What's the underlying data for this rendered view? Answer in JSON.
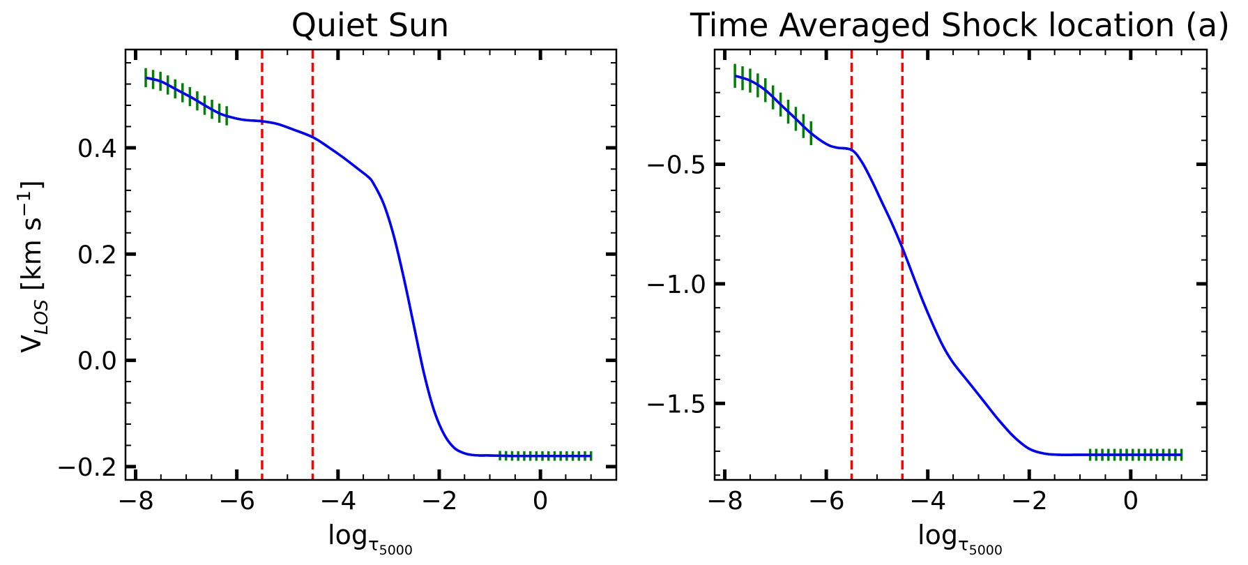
{
  "chart_data": [
    {
      "type": "line",
      "title": "Quiet Sun",
      "xlabel_main": "log",
      "xlabel_sub": "τ",
      "xlabel_subsub": "5000",
      "ylabel_main": "V",
      "ylabel_sub": "LOS",
      "ylabel_units": "  [km s",
      "ylabel_exp": "−1",
      "ylabel_close": "]",
      "xlim": [
        -8.2,
        1.5
      ],
      "ylim": [
        -0.225,
        0.585
      ],
      "xticks": [
        -8,
        -6,
        -4,
        -2,
        0
      ],
      "xtick_labels": [
        "−8",
        "−6",
        "−4",
        "−2",
        "0"
      ],
      "yticks": [
        -0.2,
        0.0,
        0.2,
        0.4
      ],
      "ytick_labels": [
        "−0.2",
        "0.0",
        "0.2",
        "0.4"
      ],
      "vlines": [
        -5.5,
        -4.5
      ],
      "vline_color": "#ff0000",
      "line_color": "#0000ff",
      "errorbar_color": "#008000",
      "series": [
        {
          "name": "V_LOS",
          "x": [
            -7.8,
            -7.5,
            -7.2,
            -6.9,
            -6.6,
            -6.3,
            -6.0,
            -5.8,
            -5.5,
            -5.2,
            -4.9,
            -4.5,
            -4.2,
            -3.9,
            -3.6,
            -3.4,
            -3.3,
            -3.1,
            -2.9,
            -2.7,
            -2.5,
            -2.3,
            -2.1,
            -1.9,
            -1.7,
            -1.5,
            -1.35,
            -1.2,
            -1.0,
            -0.5,
            0.0,
            0.5,
            1.0
          ],
          "y": [
            0.532,
            0.525,
            0.51,
            0.495,
            0.478,
            0.463,
            0.455,
            0.452,
            0.45,
            0.445,
            0.435,
            0.42,
            0.402,
            0.382,
            0.36,
            0.345,
            0.333,
            0.295,
            0.235,
            0.155,
            0.065,
            -0.025,
            -0.095,
            -0.14,
            -0.165,
            -0.175,
            -0.178,
            -0.179,
            -0.179,
            -0.18,
            -0.18,
            -0.18,
            -0.18
          ]
        }
      ],
      "errorbars": [
        {
          "x_start": -7.8,
          "x_end": -6.2,
          "n": 12,
          "half_height": 0.018
        },
        {
          "x_start": -0.8,
          "x_end": 1.0,
          "n": 16,
          "half_height": 0.009
        }
      ]
    },
    {
      "type": "line",
      "title": "Time Averaged Shock location (a)",
      "xlabel_main": "log",
      "xlabel_sub": "τ",
      "xlabel_subsub": "5000",
      "xlim": [
        -8.2,
        1.5
      ],
      "ylim": [
        -1.82,
        -0.02
      ],
      "xticks": [
        -8,
        -6,
        -4,
        -2,
        0
      ],
      "xtick_labels": [
        "−8",
        "−6",
        "−4",
        "−2",
        "0"
      ],
      "yticks": [
        -1.5,
        -1.0,
        -0.5
      ],
      "ytick_labels": [
        "−1.5",
        "−1.0",
        "−0.5"
      ],
      "vlines": [
        -5.5,
        -4.5
      ],
      "vline_color": "#ff0000",
      "line_color": "#0000ff",
      "errorbar_color": "#008000",
      "series": [
        {
          "name": "V_LOS",
          "x": [
            -7.8,
            -7.5,
            -7.2,
            -6.9,
            -6.6,
            -6.3,
            -6.0,
            -5.8,
            -5.5,
            -5.3,
            -5.1,
            -4.9,
            -4.7,
            -4.5,
            -4.3,
            -4.1,
            -3.9,
            -3.7,
            -3.5,
            -3.2,
            -2.9,
            -2.6,
            -2.3,
            -2.0,
            -1.7,
            -1.4,
            -1.1,
            -0.8,
            -0.3,
            0.2,
            0.7,
            1.0
          ],
          "y": [
            -0.13,
            -0.15,
            -0.19,
            -0.25,
            -0.31,
            -0.37,
            -0.415,
            -0.43,
            -0.44,
            -0.49,
            -0.57,
            -0.66,
            -0.75,
            -0.85,
            -0.96,
            -1.07,
            -1.17,
            -1.26,
            -1.33,
            -1.41,
            -1.49,
            -1.57,
            -1.64,
            -1.69,
            -1.71,
            -1.715,
            -1.715,
            -1.715,
            -1.715,
            -1.715,
            -1.715,
            -1.715
          ]
        }
      ],
      "errorbars": [
        {
          "x_start": -7.8,
          "x_end": -6.3,
          "n": 11,
          "half_height": 0.05
        },
        {
          "x_start": -0.8,
          "x_end": 1.0,
          "n": 16,
          "half_height": 0.025
        }
      ]
    }
  ]
}
